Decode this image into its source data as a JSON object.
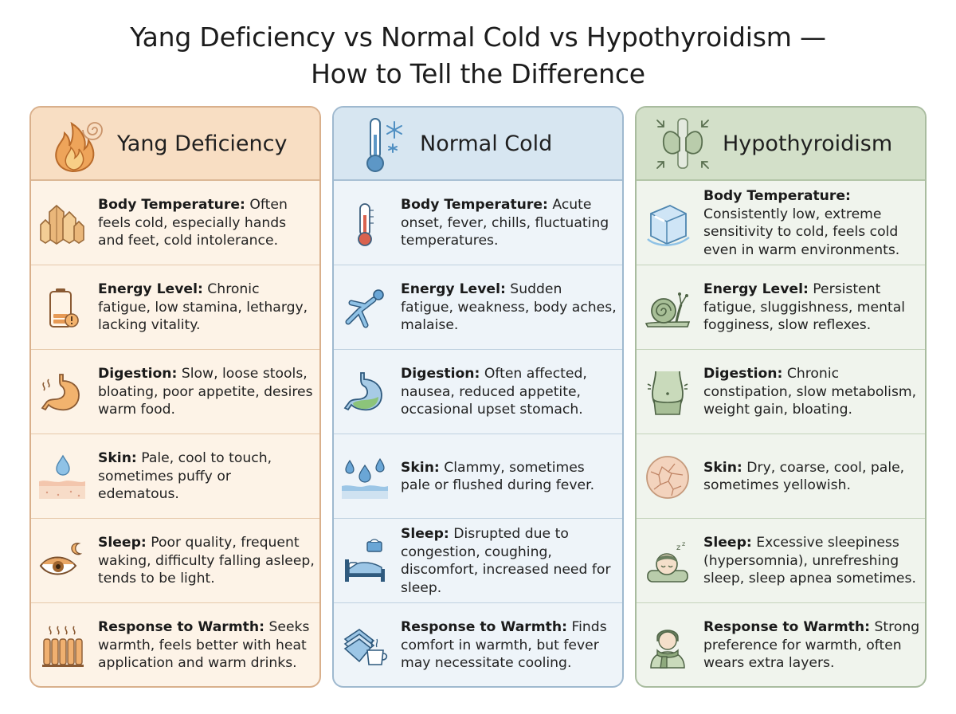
{
  "title": {
    "line1": "Yang Deficiency vs Normal Cold vs Hypothyroidism —",
    "line2": "How to Tell the Difference"
  },
  "columns": [
    {
      "title": "Yang Deficiency",
      "icon": "flame-spiral-icon",
      "accent": "#f8dec3",
      "rows": [
        {
          "label": "Body Temperature:",
          "text": " Often feels cold, especially hands and feet, cold intolerance.",
          "icon": "crystal-icon"
        },
        {
          "label": "Energy Level:",
          "text": " Chronic fatigue, low stamina, lethargy, lacking vitality.",
          "icon": "low-battery-icon"
        },
        {
          "label": "Digestion:",
          "text": " Slow, loose stools, bloating, poor appetite, desires warm food.",
          "icon": "warm-stomach-icon"
        },
        {
          "label": "Skin:",
          "text": " Pale, cool to touch, sometimes puffy or edematous.",
          "icon": "skin-droplet-icon"
        },
        {
          "label": "Sleep:",
          "text": " Poor quality, frequent waking, difficulty falling asleep, tends to be light.",
          "icon": "eye-moon-icon"
        },
        {
          "label": "Response to Warmth:",
          "text": " Seeks warmth, feels better with heat application and warm drinks.",
          "icon": "radiator-icon"
        }
      ]
    },
    {
      "title": "Normal Cold",
      "icon": "thermometer-snowflake-icon",
      "accent": "#d7e6f1",
      "rows": [
        {
          "label": "Body Temperature:",
          "text": " Acute onset, fever, chills, fluctuating temperatures.",
          "icon": "thermometer-icon"
        },
        {
          "label": "Energy Level:",
          "text": " Sudden fatigue, weakness, body aches, malaise.",
          "icon": "falling-person-icon"
        },
        {
          "label": "Digestion:",
          "text": " Often affected, nausea, reduced appetite, occasional upset stomach.",
          "icon": "upset-stomach-icon"
        },
        {
          "label": "Skin:",
          "text": " Clammy, sometimes pale or flushed during fever.",
          "icon": "skin-droplets-icon"
        },
        {
          "label": "Sleep:",
          "text": " Disrupted due to congestion, coughing, discomfort, increased need for sleep.",
          "icon": "bed-tissues-icon"
        },
        {
          "label": "Response to Warmth:",
          "text": " Finds comfort in warmth, but fever may necessitate cooling.",
          "icon": "blanket-tea-icon"
        }
      ]
    },
    {
      "title": "Hypothyroidism",
      "icon": "thyroid-icon",
      "accent": "#d3e0c9",
      "rows": [
        {
          "label": "Body Temperature:",
          "text": " Consistently low, extreme sensitivity to cold, feels cold even in warm environments.",
          "icon": "ice-cube-icon"
        },
        {
          "label": "Energy Level:",
          "text": " Persistent fatigue, sluggishness, mental fogginess, slow reflexes.",
          "icon": "snail-icon"
        },
        {
          "label": "Digestion:",
          "text": " Chronic constipation, slow metabolism, weight gain, bloating.",
          "icon": "belly-icon"
        },
        {
          "label": "Skin:",
          "text": " Dry, coarse, cool, pale, sometimes yellowish.",
          "icon": "cracked-skin-icon"
        },
        {
          "label": "Sleep:",
          "text": " Excessive sleepiness (hypersomnia), unrefreshing sleep, sleep apnea sometimes.",
          "icon": "sleeping-face-icon"
        },
        {
          "label": "Response to Warmth:",
          "text": " Strong preference for warmth, often wears extra layers.",
          "icon": "scarf-person-icon"
        }
      ]
    }
  ]
}
